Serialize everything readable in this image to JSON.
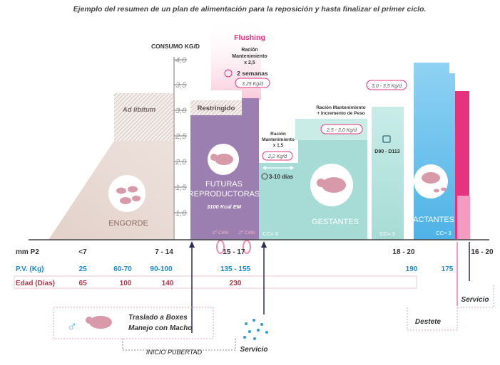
{
  "title": "Ejemplo del resumen de un plan de alimentación para la reposición y hasta finalizar el primer ciclo.",
  "consumo_label": "CONSUMO KG/D",
  "axis_ticks": [
    "4,0",
    "3,5",
    "3,0",
    "2,5",
    "2,0",
    "1,5",
    "1,0"
  ],
  "engorde": {
    "label": "ENGORDE",
    "ad_libitum": "Ad libitum"
  },
  "futuras": {
    "label_line1": "FUTURAS",
    "label_line2": "REPRODUCTORAS",
    "kcal": "3100 Kcal EM",
    "restringido": "Restringido",
    "celo1": "1º Celo",
    "celo2": "2º Celo"
  },
  "flushing": {
    "title": "Flushing",
    "line1": "Ración",
    "line2": "Mantenimiento",
    "line3": "x 2,5",
    "weeks": "2 semanas",
    "badge": "3,25 Kg/d"
  },
  "transition": {
    "line1": "Ración",
    "line2": "Mantenimiento",
    "line3": "x 1,5",
    "badge": "2,2 Kg/d",
    "days": "3-10 días",
    "cc": "CC= 3"
  },
  "gestantes": {
    "label": "GESTANTES",
    "line1": "Ración Mantenimiento",
    "line2": "+ Incremento de Peso",
    "badge": "2,5 - 3,0 Kg/d"
  },
  "late_gest": {
    "badge": "3,0 - 3,5 Kg/d",
    "range": "D90 - D113",
    "cc": "CC= 3"
  },
  "lactantes": {
    "label": "LACTANTES",
    "cc": "CC= 3"
  },
  "rows": {
    "mm_p2": {
      "label": "mm P2",
      "values": [
        "<7",
        "7 - 14",
        "15 - 17",
        "18 - 20",
        "16 - 20"
      ]
    },
    "pv": {
      "label": "P.V. (Kg)",
      "values": [
        "25",
        "60-70",
        "90-100",
        "135 - 155",
        "190",
        "175"
      ]
    },
    "edad": {
      "label": "Edad (Días)",
      "values": [
        "65",
        "100",
        "140",
        "230"
      ]
    }
  },
  "notes": {
    "traslado_line1": "Traslado a Boxes",
    "traslado_line2": "Manejo con Macho",
    "inicio_pubertad": "INICIO PUBERTAD",
    "servicio_left": "Servicio",
    "destete": "Destete",
    "servicio_right": "Servicio"
  },
  "colors": {
    "engorde": "#e4d3cd",
    "futuras": "#9b7fb0",
    "gestantes": "#a6dcd5",
    "lactantes": "#5ab8e8",
    "pink": "#e5337e",
    "blue_text": "#1e88d8",
    "red_text": "#b5354a"
  }
}
